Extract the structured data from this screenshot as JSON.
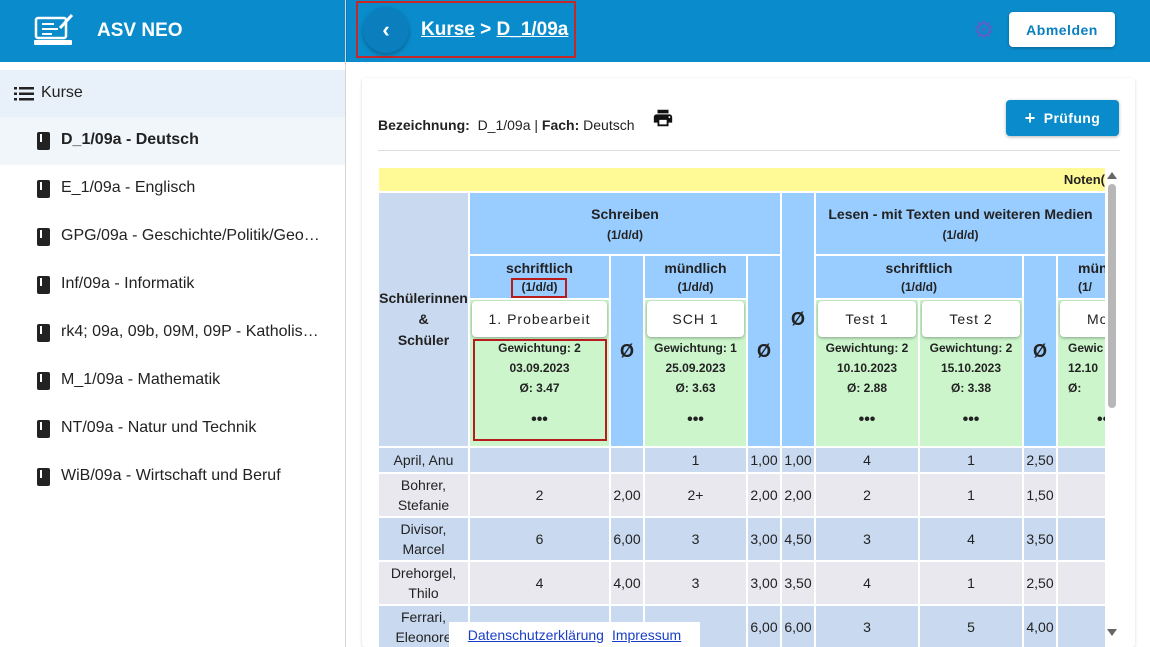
{
  "app": {
    "title": "ASV NEO",
    "icon": "teacher-desk-icon"
  },
  "breadcrumb": {
    "root": "Kurse",
    "separator": ">",
    "current": "D_1/09a"
  },
  "header": {
    "logout_label": "Abmelden",
    "settings_icon": "gear-icon",
    "back_icon": "chevron-left-icon"
  },
  "sidebar": {
    "heading": "Kurse",
    "items": [
      {
        "label": "D_1/09a - Deutsch",
        "active": true
      },
      {
        "label": "E_1/09a - Englisch"
      },
      {
        "label": "GPG/09a - Geschichte/Politik/Geo…"
      },
      {
        "label": "Inf/09a - Informatik"
      },
      {
        "label": "rk4; 09a, 09b, 09M, 09P - Katholis…"
      },
      {
        "label": "M_1/09a - Mathematik"
      },
      {
        "label": "NT/09a - Natur und Technik"
      },
      {
        "label": "WiB/09a - Wirtschaft und Beruf"
      }
    ]
  },
  "course": {
    "bezeichnung_label": "Bezeichnung:",
    "bezeichnung": "D_1/09a",
    "sep": "|",
    "fach_label": "Fach:",
    "fach": "Deutsch",
    "add_exam_label": "Prüfung",
    "add_icon": "plus-icon",
    "print_icon": "printer-icon"
  },
  "table": {
    "top_label": "Noten(",
    "students_header": [
      "Schülerinnen",
      "&",
      "Schüler"
    ],
    "avg_symbol": "Ø",
    "groups": [
      {
        "title": "Schreiben",
        "weight": "(1/d/d)"
      },
      {
        "title": "Lesen - mit Texten und weiteren Medien",
        "weight": "(1/d/d)"
      }
    ],
    "subgroups": [
      {
        "title": "schriftlich",
        "weight": "(1/d/d)"
      },
      {
        "title": "mündlich",
        "weight": "(1/d/d)"
      },
      {
        "title": "schriftlich",
        "weight": "(1/d/d)"
      },
      {
        "title": "münd",
        "weight": "(1/"
      }
    ],
    "exams": [
      {
        "name": "1. Probearbeit",
        "weight": "Gewichtung: 2",
        "date": "03.09.2023",
        "avg": "Ø:  3.47"
      },
      {
        "name": "SCH 1",
        "weight": "Gewichtung: 1",
        "date": "25.09.2023",
        "avg": "Ø:  3.63"
      },
      {
        "name": "Test 1",
        "weight": "Gewichtung: 2",
        "date": "10.10.2023",
        "avg": "Ø:  2.88"
      },
      {
        "name": "Test 2",
        "weight": "Gewichtung: 2",
        "date": "15.10.2023",
        "avg": "Ø:  3.38"
      },
      {
        "name": "Mo",
        "weight": "Gewic",
        "date": "12.10",
        "avg": "Ø:"
      }
    ],
    "more": "•••",
    "students": [
      {
        "name": "April, Anu",
        "cells": [
          "",
          "",
          "1",
          "1,00",
          "1,00",
          "4",
          "1",
          "2,50"
        ]
      },
      {
        "name": "Bohrer, Stefanie",
        "cells": [
          "2",
          "2,00",
          "2+",
          "2,00",
          "2,00",
          "2",
          "1",
          "1,50"
        ]
      },
      {
        "name": "Divisor, Marcel",
        "cells": [
          "6",
          "6,00",
          "3",
          "3,00",
          "4,50",
          "3",
          "4",
          "3,50"
        ]
      },
      {
        "name": "Drehorgel, Thilo",
        "cells": [
          "4",
          "4,00",
          "3",
          "3,00",
          "3,50",
          "4",
          "1",
          "2,50"
        ]
      },
      {
        "name": "Ferrari, Eleonore",
        "cells": [
          "",
          "",
          "",
          "6,00",
          "6,00",
          "3",
          "5",
          "4,00"
        ]
      }
    ]
  },
  "footer": {
    "privacy": "Datenschutzerklärung",
    "imprint": "Impressum"
  }
}
